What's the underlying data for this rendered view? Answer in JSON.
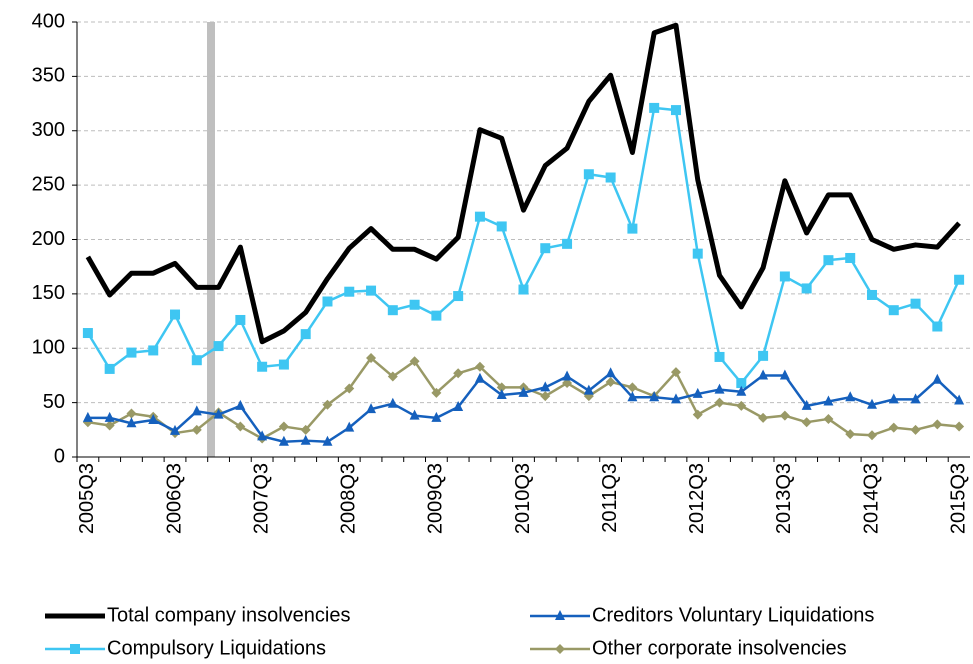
{
  "chart_data": {
    "type": "line",
    "categories": [
      "2005Q3",
      null,
      null,
      null,
      "2006Q3",
      null,
      null,
      null,
      "2007Q3",
      null,
      null,
      null,
      "2008Q3",
      null,
      null,
      null,
      "2009Q3",
      null,
      null,
      null,
      "2010Q3",
      null,
      null,
      null,
      "2011Q3",
      null,
      null,
      null,
      "2012Q3",
      null,
      null,
      null,
      "2013Q3",
      null,
      null,
      null,
      "2014Q3",
      null,
      null,
      null,
      "2015Q3"
    ],
    "series": [
      {
        "name": "Total company insolvencies",
        "color": "#000000",
        "marker": "none",
        "width": 5,
        "values": [
          184,
          149,
          169,
          169,
          178,
          156,
          156,
          193,
          106,
          116,
          133,
          164,
          192,
          210,
          191,
          191,
          182,
          202,
          301,
          293,
          227,
          268,
          284,
          327,
          351,
          280,
          390,
          397,
          255,
          167,
          138,
          174,
          254,
          206,
          241,
          241,
          200,
          191,
          195,
          193,
          215
        ]
      },
      {
        "name": "Creditors Voluntary Liquidations",
        "color": "#1560bd",
        "marker": "triangle",
        "width": 2.5,
        "values": [
          36,
          36,
          31,
          34,
          24,
          42,
          39,
          47,
          19,
          14,
          15,
          14,
          27,
          44,
          49,
          38,
          36,
          46,
          72,
          57,
          59,
          64,
          74,
          61,
          77,
          55,
          55,
          53,
          58,
          62,
          60,
          75,
          75,
          47,
          51,
          55,
          48,
          53,
          53,
          71,
          52
        ]
      },
      {
        "name": "Compulsory Liquidations",
        "color": "#3ec6f2",
        "marker": "square",
        "width": 2.5,
        "values": [
          114,
          81,
          96,
          98,
          131,
          89,
          102,
          126,
          83,
          85,
          113,
          143,
          152,
          153,
          135,
          140,
          130,
          148,
          221,
          212,
          154,
          192,
          196,
          260,
          257,
          210,
          321,
          319,
          187,
          92,
          68,
          93,
          166,
          155,
          181,
          183,
          149,
          135,
          141,
          120,
          163
        ]
      },
      {
        "name": "Other corporate insolvencies",
        "color": "#999966",
        "marker": "diamond",
        "width": 2.5,
        "values": [
          32,
          29,
          40,
          37,
          22,
          25,
          41,
          28,
          17,
          28,
          25,
          48,
          63,
          91,
          74,
          88,
          59,
          77,
          83,
          64,
          64,
          56,
          68,
          56,
          69,
          64,
          56,
          78,
          39,
          50,
          47,
          36,
          38,
          32,
          35,
          21,
          20,
          27,
          25,
          30,
          28
        ]
      }
    ],
    "ylim": [
      0,
      400
    ],
    "yticks": [
      0,
      50,
      100,
      150,
      200,
      250,
      300,
      350,
      400
    ],
    "grid": true
  }
}
